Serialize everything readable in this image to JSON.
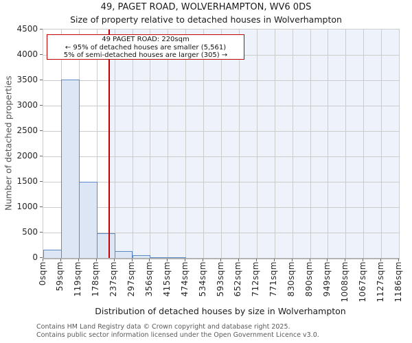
{
  "header": {
    "title": "49, PAGET ROAD, WOLVERHAMPTON, WV6 0DS",
    "subtitle": "Size of property relative to detached houses in Wolverhampton"
  },
  "annotation": {
    "line1": "49 PAGET ROAD: 220sqm",
    "line2": "← 95% of detached houses are smaller (5,561)",
    "line3": "5% of semi-detached houses are larger (305) →"
  },
  "footer": {
    "line1": "Contains HM Land Registry data © Crown copyright and database right 2025.",
    "line2": "Contains public sector information licensed under the Open Government Licence v3.0."
  },
  "colors": {
    "bar_fill": "#dce6f4",
    "bar_border": "#5b8ac2",
    "marker_red": "#c00000",
    "shade_region": "#edf2fb",
    "gridline": "#cccccc",
    "axis_spine": "#b3b3b3",
    "footer_text": "#595959"
  },
  "chart_data": {
    "type": "bar",
    "title": "49, PAGET ROAD, WOLVERHAMPTON, WV6 0DS",
    "subtitle": "Size of property relative to detached houses in Wolverhampton",
    "xlabel": "Distribution of detached houses by size in Wolverhampton",
    "ylabel": "Number of detached properties",
    "categories": [
      "0sqm",
      "59sqm",
      "119sqm",
      "178sqm",
      "237sqm",
      "297sqm",
      "356sqm",
      "415sqm",
      "474sqm",
      "534sqm",
      "593sqm",
      "652sqm",
      "712sqm",
      "771sqm",
      "830sqm",
      "890sqm",
      "949sqm",
      "1008sqm",
      "1067sqm",
      "1127sqm",
      "1186sqm"
    ],
    "bin_edges_sqm": [
      0,
      59,
      119,
      178,
      237,
      297,
      356,
      415,
      474,
      534,
      593,
      652,
      712,
      771,
      830,
      890,
      949,
      1008,
      1067,
      1127,
      1186
    ],
    "values": [
      165,
      3520,
      1500,
      490,
      140,
      50,
      20,
      10,
      0,
      0,
      0,
      0,
      0,
      0,
      0,
      0,
      0,
      0,
      0,
      0
    ],
    "ylim": [
      0,
      4500
    ],
    "y_ticks": [
      0,
      500,
      1000,
      1500,
      2000,
      2500,
      3000,
      3500,
      4000,
      4500
    ],
    "x_max_sqm": 1186,
    "marker_value_sqm": 220,
    "grid": true,
    "legend": "none"
  }
}
